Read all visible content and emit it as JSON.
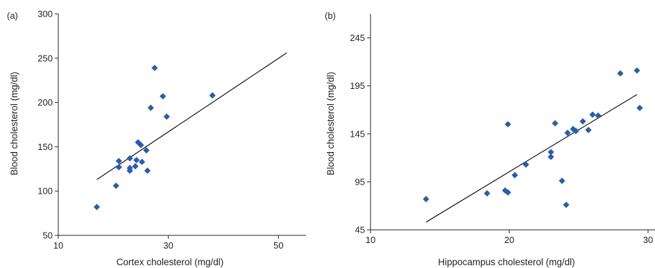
{
  "chart_data": [
    {
      "type": "scatter",
      "panel_label": "(a)",
      "xlabel": "Cortex cholesterol (mg/dl)",
      "ylabel": "Blood cholesterol (mg/dl)",
      "xlim": [
        10,
        55
      ],
      "ylim": [
        50,
        300
      ],
      "xticks": [
        10,
        30,
        50
      ],
      "yticks": [
        50,
        100,
        150,
        200,
        250,
        300
      ],
      "marker_color": "#2a5caa",
      "points": [
        {
          "x": 17,
          "y": 82
        },
        {
          "x": 20.5,
          "y": 106
        },
        {
          "x": 21,
          "y": 127
        },
        {
          "x": 21,
          "y": 134
        },
        {
          "x": 23,
          "y": 123
        },
        {
          "x": 23,
          "y": 126
        },
        {
          "x": 23,
          "y": 137
        },
        {
          "x": 24,
          "y": 128
        },
        {
          "x": 24.2,
          "y": 135
        },
        {
          "x": 24.5,
          "y": 155
        },
        {
          "x": 25,
          "y": 152
        },
        {
          "x": 25.2,
          "y": 133
        },
        {
          "x": 26,
          "y": 146
        },
        {
          "x": 26.2,
          "y": 123
        },
        {
          "x": 26.8,
          "y": 194
        },
        {
          "x": 27.5,
          "y": 239
        },
        {
          "x": 29,
          "y": 207
        },
        {
          "x": 29.7,
          "y": 184
        },
        {
          "x": 38,
          "y": 208
        }
      ],
      "fit_line": {
        "x": [
          17,
          51.5
        ],
        "y": [
          113,
          256
        ]
      }
    },
    {
      "type": "scatter",
      "panel_label": "(b)",
      "xlabel": "Hippocampus cholesterol (mg/dl)",
      "ylabel": "Blood cholesterol (mg/dl)",
      "xlim": [
        10,
        30.5
      ],
      "ylim": [
        45,
        270
      ],
      "xticks": [
        10,
        20,
        30
      ],
      "yticks": [
        45,
        95,
        145,
        195,
        245
      ],
      "marker_color": "#2a5caa",
      "points": [
        {
          "x": 14,
          "y": 77
        },
        {
          "x": 18.4,
          "y": 83
        },
        {
          "x": 19.7,
          "y": 86
        },
        {
          "x": 19.9,
          "y": 84
        },
        {
          "x": 19.9,
          "y": 155
        },
        {
          "x": 20.4,
          "y": 102
        },
        {
          "x": 21.2,
          "y": 113
        },
        {
          "x": 23.0,
          "y": 121
        },
        {
          "x": 23.0,
          "y": 126
        },
        {
          "x": 23.3,
          "y": 156
        },
        {
          "x": 23.8,
          "y": 96
        },
        {
          "x": 24.1,
          "y": 71
        },
        {
          "x": 24.2,
          "y": 146
        },
        {
          "x": 24.6,
          "y": 150
        },
        {
          "x": 24.8,
          "y": 148
        },
        {
          "x": 25.3,
          "y": 158
        },
        {
          "x": 25.7,
          "y": 149
        },
        {
          "x": 26.0,
          "y": 165
        },
        {
          "x": 26.4,
          "y": 164
        },
        {
          "x": 28.0,
          "y": 208
        },
        {
          "x": 29.2,
          "y": 211
        },
        {
          "x": 29.4,
          "y": 172
        }
      ],
      "fit_line": {
        "x": [
          14,
          29.2
        ],
        "y": [
          53,
          186
        ]
      }
    }
  ]
}
